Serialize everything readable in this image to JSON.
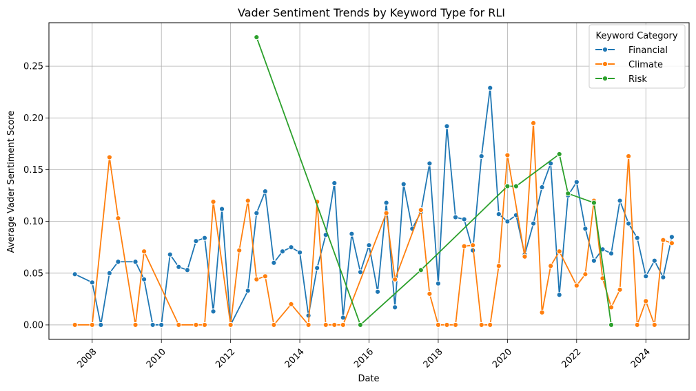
{
  "chart_data": {
    "type": "line",
    "title": "Vader Sentiment Trends by Keyword Type for RLI",
    "xlabel": "Date",
    "ylabel": "Average Vader Sentiment Score",
    "xlim": [
      2006.75,
      2025.25
    ],
    "ylim": [
      -0.014,
      0.292
    ],
    "x_ticks": [
      2008,
      2010,
      2012,
      2014,
      2016,
      2018,
      2020,
      2022,
      2024
    ],
    "y_ticks": [
      0.0,
      0.05,
      0.1,
      0.15,
      0.2,
      0.25
    ],
    "y_tick_labels": [
      "0.00",
      "0.05",
      "0.10",
      "0.15",
      "0.20",
      "0.25"
    ],
    "grid": true,
    "legend": {
      "title": "Keyword Category",
      "position": "top-right"
    },
    "series": [
      {
        "name": "Financial",
        "color": "#1f77b4",
        "x": [
          2007.5,
          2008.0,
          2008.25,
          2008.5,
          2008.75,
          2009.25,
          2009.5,
          2009.75,
          2010.0,
          2010.25,
          2010.5,
          2010.75,
          2011.0,
          2011.25,
          2011.5,
          2011.75,
          2012.0,
          2012.5,
          2012.75,
          2013.0,
          2013.25,
          2013.5,
          2013.75,
          2014.0,
          2014.25,
          2014.5,
          2014.75,
          2015.0,
          2015.25,
          2015.5,
          2015.75,
          2016.0,
          2016.25,
          2016.5,
          2016.75,
          2017.0,
          2017.25,
          2017.5,
          2017.75,
          2018.0,
          2018.25,
          2018.5,
          2018.75,
          2019.0,
          2019.25,
          2019.5,
          2019.75,
          2020.0,
          2020.25,
          2020.5,
          2020.75,
          2021.0,
          2021.25,
          2021.5,
          2021.75,
          2022.0,
          2022.25,
          2022.5,
          2022.75,
          2023.0,
          2023.25,
          2023.5,
          2023.75,
          2024.0,
          2024.25,
          2024.5,
          2024.75
        ],
        "values": [
          0.049,
          0.041,
          0.0,
          0.05,
          0.061,
          0.061,
          0.044,
          0.0,
          0.0,
          0.068,
          0.056,
          0.053,
          0.081,
          0.084,
          0.013,
          0.112,
          0.0,
          0.033,
          0.108,
          0.129,
          0.06,
          0.071,
          0.075,
          0.07,
          0.009,
          0.055,
          0.087,
          0.137,
          0.007,
          0.088,
          0.051,
          0.077,
          0.032,
          0.118,
          0.017,
          0.136,
          0.093,
          0.109,
          0.156,
          0.04,
          0.192,
          0.104,
          0.102,
          0.072,
          0.163,
          0.229,
          0.107,
          0.1,
          0.106,
          0.068,
          0.098,
          0.133,
          0.156,
          0.029,
          0.125,
          0.138,
          0.093,
          0.062,
          0.073,
          0.069,
          0.12,
          0.098,
          0.084,
          0.047,
          0.062,
          0.046,
          0.085
        ]
      },
      {
        "name": "Climate",
        "color": "#ff7f0e",
        "x": [
          2007.5,
          2008.0,
          2008.5,
          2008.75,
          2009.25,
          2009.5,
          2010.5,
          2011.0,
          2011.25,
          2011.5,
          2012.0,
          2012.25,
          2012.5,
          2012.75,
          2013.0,
          2013.25,
          2013.75,
          2014.25,
          2014.5,
          2014.75,
          2015.0,
          2015.25,
          2016.5,
          2016.75,
          2017.5,
          2017.75,
          2018.0,
          2018.25,
          2018.5,
          2018.75,
          2019.0,
          2019.25,
          2019.5,
          2019.75,
          2020.0,
          2020.5,
          2020.75,
          2021.0,
          2021.25,
          2021.5,
          2022.0,
          2022.25,
          2022.5,
          2022.75,
          2023.0,
          2023.25,
          2023.5,
          2023.75,
          2024.0,
          2024.25,
          2024.5,
          2024.75
        ],
        "values": [
          0.0,
          0.0,
          0.162,
          0.103,
          0.0,
          0.071,
          0.0,
          0.0,
          0.0,
          0.119,
          0.0,
          0.072,
          0.12,
          0.044,
          0.047,
          0.0,
          0.02,
          0.0,
          0.119,
          0.0,
          0.0,
          0.0,
          0.108,
          0.044,
          0.111,
          0.03,
          0.0,
          0.0,
          0.0,
          0.076,
          0.077,
          0.0,
          0.0,
          0.057,
          0.164,
          0.066,
          0.195,
          0.012,
          0.057,
          0.071,
          0.038,
          0.049,
          0.12,
          0.045,
          0.017,
          0.034,
          0.163,
          0.0,
          0.023,
          0.0,
          0.082,
          0.079
        ]
      },
      {
        "name": "Risk",
        "color": "#2ca02c",
        "x": [
          2012.75,
          2015.75,
          2017.5,
          2020.0,
          2020.25,
          2021.5,
          2021.75,
          2022.5,
          2023.0
        ],
        "values": [
          0.278,
          0.0,
          0.053,
          0.134,
          0.134,
          0.165,
          0.127,
          0.118,
          0.0
        ]
      }
    ]
  }
}
